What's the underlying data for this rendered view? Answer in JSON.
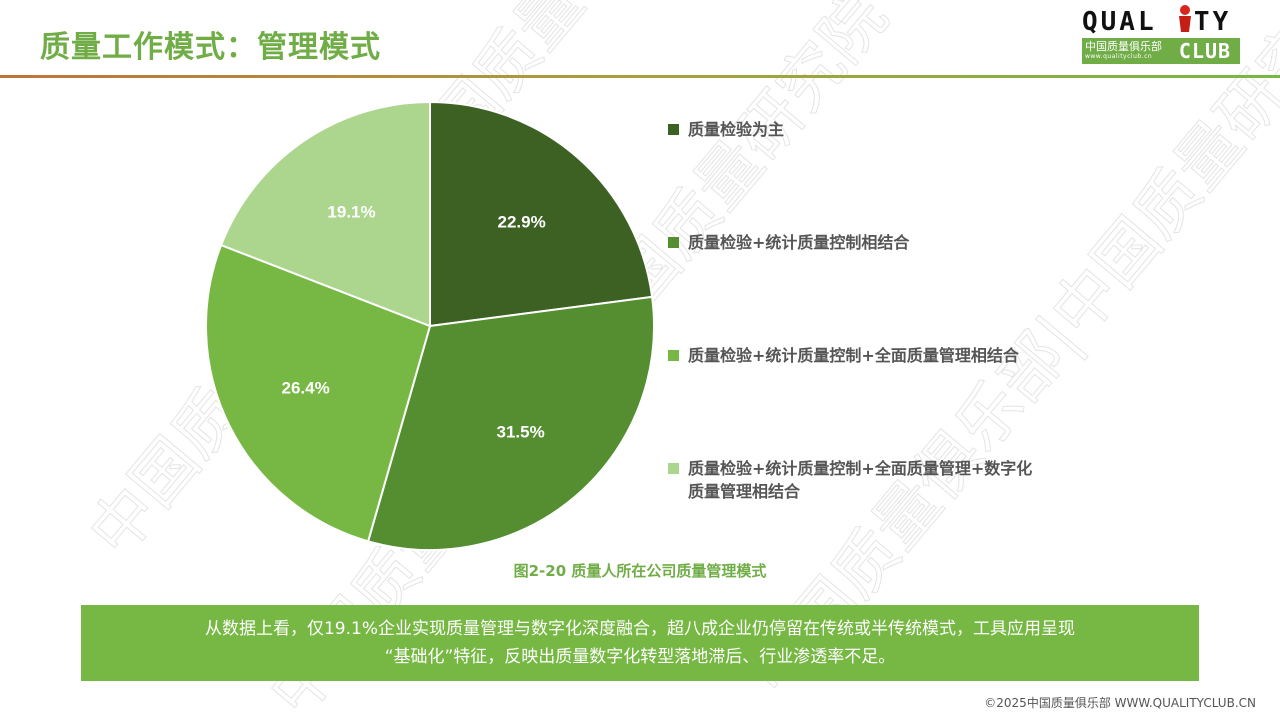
{
  "header": {
    "title": "质量工作模式：管理模式",
    "logo": {
      "top_text": "QUAL  TY",
      "cn_text": "中国质量俱乐部",
      "url_text": "www.qualityclub.cn",
      "club_text": "CLUB"
    }
  },
  "colors": {
    "title_green": "#70ad47",
    "slice_1": "#3d6123",
    "slice_2": "#548e31",
    "slice_3": "#76b843",
    "slice_4": "#acd68e",
    "summary_bg": "#76b843",
    "legend_text": "#555555"
  },
  "chart_data": {
    "type": "pie",
    "title": "图2-20 质量人所在公司质量管理模式",
    "categories": [
      "质量检验为主",
      "质量检验+统计质量控制相结合",
      "质量检验+统计质量控制+全面质量管理相结合",
      "质量检验+统计质量控制+全面质量管理+数字化质量管理相结合"
    ],
    "values": [
      22.9,
      31.5,
      26.4,
      19.1
    ],
    "labels": [
      "22.9%",
      "31.5%",
      "26.4%",
      "19.1%"
    ],
    "colors": [
      "#3d6123",
      "#548e31",
      "#76b843",
      "#acd68e"
    ],
    "start_angle": "12 o'clock",
    "direction": "clockwise",
    "legend_position": "right"
  },
  "legend": {
    "items": [
      {
        "label": "质量检验为主"
      },
      {
        "label": "质量检验+统计质量控制相结合"
      },
      {
        "label": "质量检验+统计质量控制+全面质量管理相结合"
      },
      {
        "label_line1": "质量检验+统计质量控制+全面质量管理+数字化",
        "label_line2": "质量管理相结合"
      }
    ]
  },
  "caption": "图2-20  质量人所在公司质量管理模式",
  "summary": {
    "line1": "从数据上看，仅19.1%企业实现质量管理与数字化深度融合，超八成企业仍停留在传统或半传统模式，工具应用呈现",
    "line2": "“基础化”特征，反映出质量数字化转型落地滞后、行业渗透率不足。"
  },
  "footer": "©2025中国质量俱乐部 WWW.QUALITYCLUB.CN",
  "watermark_text": "中国质量俱乐部|中国质量研究院"
}
